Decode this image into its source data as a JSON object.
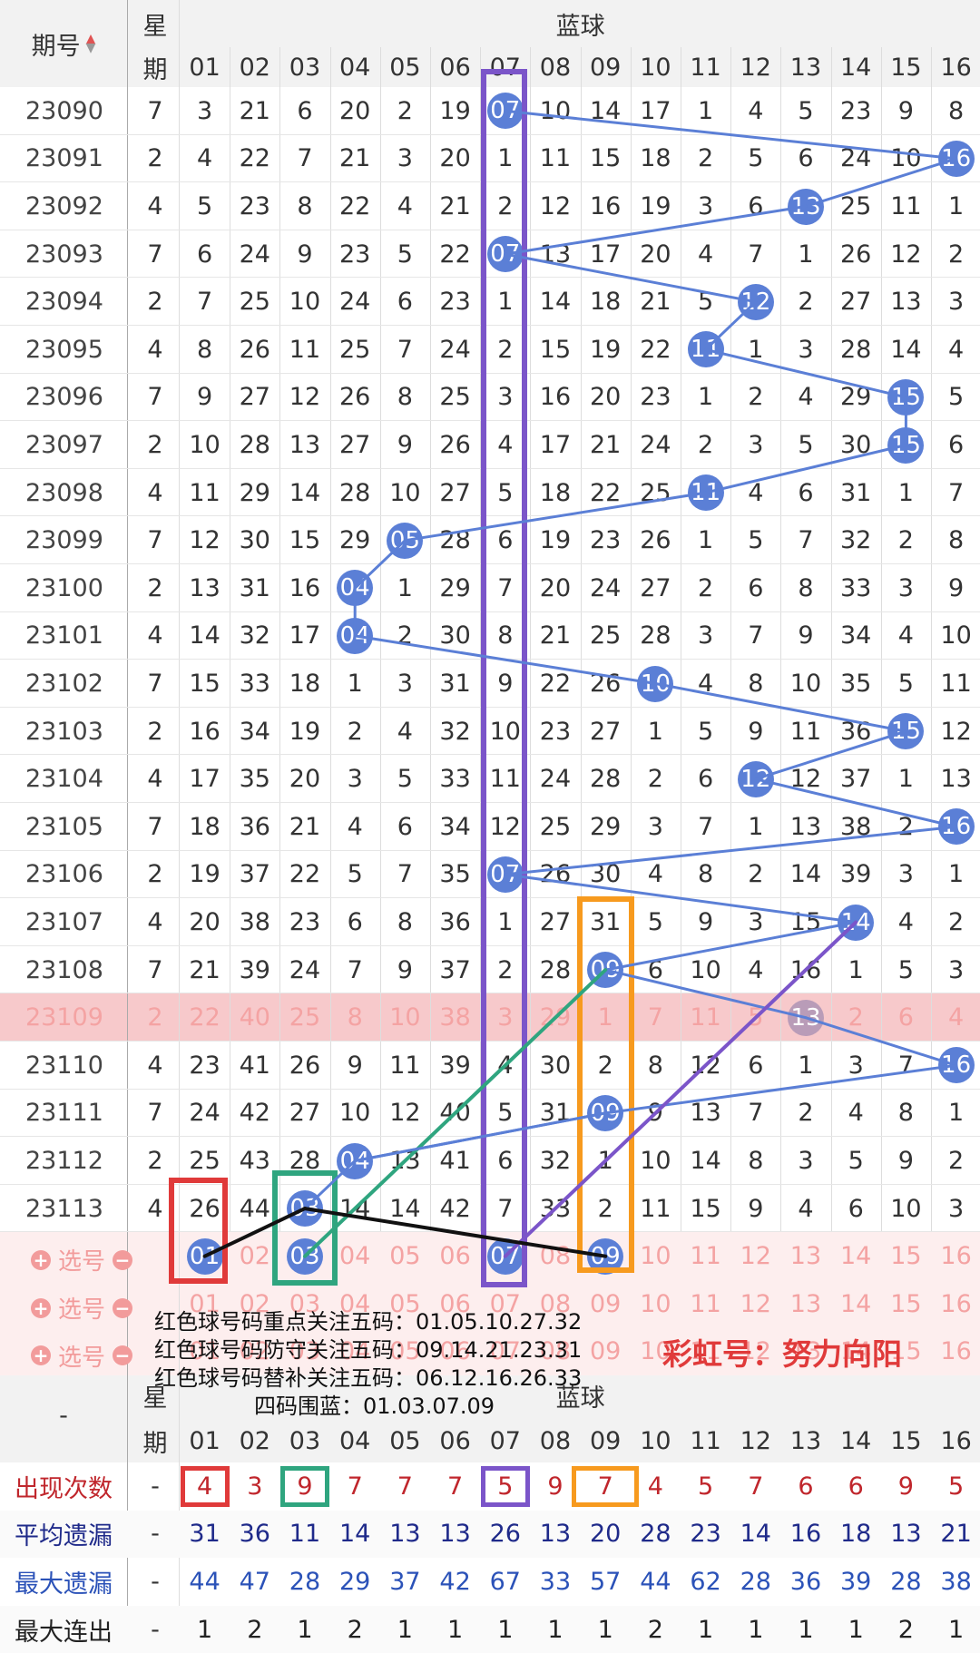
{
  "headers": {
    "issue_label": "期号",
    "sort_icon": "sort-updown-icon",
    "weekday_top": "星",
    "weekday_bottom": "期",
    "blue_label": "蓝球",
    "dash": "-",
    "columns": [
      "01",
      "02",
      "03",
      "04",
      "05",
      "06",
      "07",
      "08",
      "09",
      "10",
      "11",
      "12",
      "13",
      "14",
      "15",
      "16"
    ]
  },
  "rows": [
    {
      "issue": "23090",
      "wd": "7",
      "cells": [
        "3",
        "21",
        "6",
        "20",
        "2",
        "19",
        "07",
        "10",
        "14",
        "17",
        "1",
        "4",
        "5",
        "23",
        "9",
        "8"
      ],
      "hit": 7
    },
    {
      "issue": "23091",
      "wd": "2",
      "cells": [
        "4",
        "22",
        "7",
        "21",
        "3",
        "20",
        "1",
        "11",
        "15",
        "18",
        "2",
        "5",
        "6",
        "24",
        "10",
        "16"
      ],
      "hit": 16
    },
    {
      "issue": "23092",
      "wd": "4",
      "cells": [
        "5",
        "23",
        "8",
        "22",
        "4",
        "21",
        "2",
        "12",
        "16",
        "19",
        "3",
        "6",
        "13",
        "25",
        "11",
        "1"
      ],
      "hit": 13
    },
    {
      "issue": "23093",
      "wd": "7",
      "cells": [
        "6",
        "24",
        "9",
        "23",
        "5",
        "22",
        "07",
        "13",
        "17",
        "20",
        "4",
        "7",
        "1",
        "26",
        "12",
        "2"
      ],
      "hit": 7
    },
    {
      "issue": "23094",
      "wd": "2",
      "cells": [
        "7",
        "25",
        "10",
        "24",
        "6",
        "23",
        "1",
        "14",
        "18",
        "21",
        "5",
        "12",
        "2",
        "27",
        "13",
        "3"
      ],
      "hit": 12
    },
    {
      "issue": "23095",
      "wd": "4",
      "cells": [
        "8",
        "26",
        "11",
        "25",
        "7",
        "24",
        "2",
        "15",
        "19",
        "22",
        "11",
        "1",
        "3",
        "28",
        "14",
        "4"
      ],
      "hit": 11
    },
    {
      "issue": "23096",
      "wd": "7",
      "cells": [
        "9",
        "27",
        "12",
        "26",
        "8",
        "25",
        "3",
        "16",
        "20",
        "23",
        "1",
        "2",
        "4",
        "29",
        "15",
        "5"
      ],
      "hit": 15
    },
    {
      "issue": "23097",
      "wd": "2",
      "cells": [
        "10",
        "28",
        "13",
        "27",
        "9",
        "26",
        "4",
        "17",
        "21",
        "24",
        "2",
        "3",
        "5",
        "30",
        "15",
        "6"
      ],
      "hit": 15
    },
    {
      "issue": "23098",
      "wd": "4",
      "cells": [
        "11",
        "29",
        "14",
        "28",
        "10",
        "27",
        "5",
        "18",
        "22",
        "25",
        "11",
        "4",
        "6",
        "31",
        "1",
        "7"
      ],
      "hit": 11
    },
    {
      "issue": "23099",
      "wd": "7",
      "cells": [
        "12",
        "30",
        "15",
        "29",
        "05",
        "28",
        "6",
        "19",
        "23",
        "26",
        "1",
        "5",
        "7",
        "32",
        "2",
        "8"
      ],
      "hit": 5
    },
    {
      "issue": "23100",
      "wd": "2",
      "cells": [
        "13",
        "31",
        "16",
        "04",
        "1",
        "29",
        "7",
        "20",
        "24",
        "27",
        "2",
        "6",
        "8",
        "33",
        "3",
        "9"
      ],
      "hit": 4
    },
    {
      "issue": "23101",
      "wd": "4",
      "cells": [
        "14",
        "32",
        "17",
        "04",
        "2",
        "30",
        "8",
        "21",
        "25",
        "28",
        "3",
        "7",
        "9",
        "34",
        "4",
        "10"
      ],
      "hit": 4
    },
    {
      "issue": "23102",
      "wd": "7",
      "cells": [
        "15",
        "33",
        "18",
        "1",
        "3",
        "31",
        "9",
        "22",
        "26",
        "10",
        "4",
        "8",
        "10",
        "35",
        "5",
        "11"
      ],
      "hit": 10
    },
    {
      "issue": "23103",
      "wd": "2",
      "cells": [
        "16",
        "34",
        "19",
        "2",
        "4",
        "32",
        "10",
        "23",
        "27",
        "1",
        "5",
        "9",
        "11",
        "36",
        "15",
        "12"
      ],
      "hit": 15
    },
    {
      "issue": "23104",
      "wd": "4",
      "cells": [
        "17",
        "35",
        "20",
        "3",
        "5",
        "33",
        "11",
        "24",
        "28",
        "2",
        "6",
        "12",
        "12",
        "37",
        "1",
        "13"
      ],
      "hit": 12
    },
    {
      "issue": "23105",
      "wd": "7",
      "cells": [
        "18",
        "36",
        "21",
        "4",
        "6",
        "34",
        "12",
        "25",
        "29",
        "3",
        "7",
        "1",
        "13",
        "38",
        "2",
        "16"
      ],
      "hit": 16
    },
    {
      "issue": "23106",
      "wd": "2",
      "cells": [
        "19",
        "37",
        "22",
        "5",
        "7",
        "35",
        "07",
        "26",
        "30",
        "4",
        "8",
        "2",
        "14",
        "39",
        "3",
        "1"
      ],
      "hit": 7
    },
    {
      "issue": "23107",
      "wd": "4",
      "cells": [
        "20",
        "38",
        "23",
        "6",
        "8",
        "36",
        "1",
        "27",
        "31",
        "5",
        "9",
        "3",
        "15",
        "14",
        "4",
        "2"
      ],
      "hit": 14
    },
    {
      "issue": "23108",
      "wd": "7",
      "cells": [
        "21",
        "39",
        "24",
        "7",
        "9",
        "37",
        "2",
        "28",
        "09",
        "6",
        "10",
        "4",
        "16",
        "1",
        "5",
        "3"
      ],
      "hit": 9
    },
    {
      "issue": "23109",
      "wd": "2",
      "cells": [
        "22",
        "40",
        "25",
        "8",
        "10",
        "38",
        "3",
        "29",
        "1",
        "7",
        "11",
        "5",
        "13",
        "2",
        "6",
        "4"
      ],
      "hit": 13
    },
    {
      "issue": "23110",
      "wd": "4",
      "cells": [
        "23",
        "41",
        "26",
        "9",
        "11",
        "39",
        "4",
        "30",
        "2",
        "8",
        "12",
        "6",
        "1",
        "3",
        "7",
        "16"
      ],
      "hit": 16
    },
    {
      "issue": "23111",
      "wd": "7",
      "cells": [
        "24",
        "42",
        "27",
        "10",
        "12",
        "40",
        "5",
        "31",
        "09",
        "9",
        "13",
        "7",
        "2",
        "4",
        "8",
        "1"
      ],
      "hit": 9
    },
    {
      "issue": "23112",
      "wd": "2",
      "cells": [
        "25",
        "43",
        "28",
        "04",
        "13",
        "41",
        "6",
        "32",
        "1",
        "10",
        "14",
        "8",
        "3",
        "5",
        "9",
        "2"
      ],
      "hit": 4
    },
    {
      "issue": "23113",
      "wd": "4",
      "cells": [
        "26",
        "44",
        "03",
        "14",
        "14",
        "42",
        "7",
        "33",
        "2",
        "11",
        "15",
        "9",
        "4",
        "6",
        "10",
        "3"
      ],
      "hit": 3
    }
  ],
  "select_label": "选号",
  "select_numbers": [
    "01",
    "02",
    "03",
    "04",
    "05",
    "06",
    "07",
    "08",
    "09",
    "10",
    "11",
    "12",
    "13",
    "14",
    "15",
    "16"
  ],
  "picked": [
    "01",
    "03",
    "07",
    "09"
  ],
  "notes": [
    "红色球号码重点关注五码：01.05.10.27.32",
    "红色球号码防守关注五码：09.14.21.23.31",
    "红色球号码替补关注五码：06.12.16.26.33",
    "四码围蓝：01.03.07.09"
  ],
  "slogan": "彩虹号：努力向阳",
  "stats": [
    {
      "label": "出现次数",
      "color": "#c0262c",
      "values": [
        "4",
        "3",
        "9",
        "7",
        "7",
        "7",
        "5",
        "9",
        "7",
        "4",
        "5",
        "7",
        "6",
        "6",
        "9",
        "5"
      ]
    },
    {
      "label": "平均遗漏",
      "color": "#1f2a8a",
      "values": [
        "31",
        "36",
        "11",
        "14",
        "13",
        "13",
        "26",
        "13",
        "20",
        "28",
        "23",
        "14",
        "16",
        "18",
        "13",
        "21"
      ]
    },
    {
      "label": "最大遗漏",
      "color": "#2b52b8",
      "values": [
        "44",
        "47",
        "28",
        "29",
        "37",
        "42",
        "67",
        "33",
        "57",
        "44",
        "62",
        "28",
        "36",
        "39",
        "28",
        "38"
      ]
    },
    {
      "label": "最大连出",
      "color": "#222222",
      "values": [
        "1",
        "2",
        "1",
        "2",
        "1",
        "1",
        "1",
        "1",
        "1",
        "2",
        "1",
        "1",
        "1",
        "1",
        "2",
        "1"
      ]
    }
  ],
  "colors": {
    "ball": "#5b7fd6",
    "highlight_row": "#f7c9cb",
    "purple": "#7b55c9",
    "orange": "#f79a1e",
    "green": "#2fa57f",
    "red": "#e03a3a"
  }
}
